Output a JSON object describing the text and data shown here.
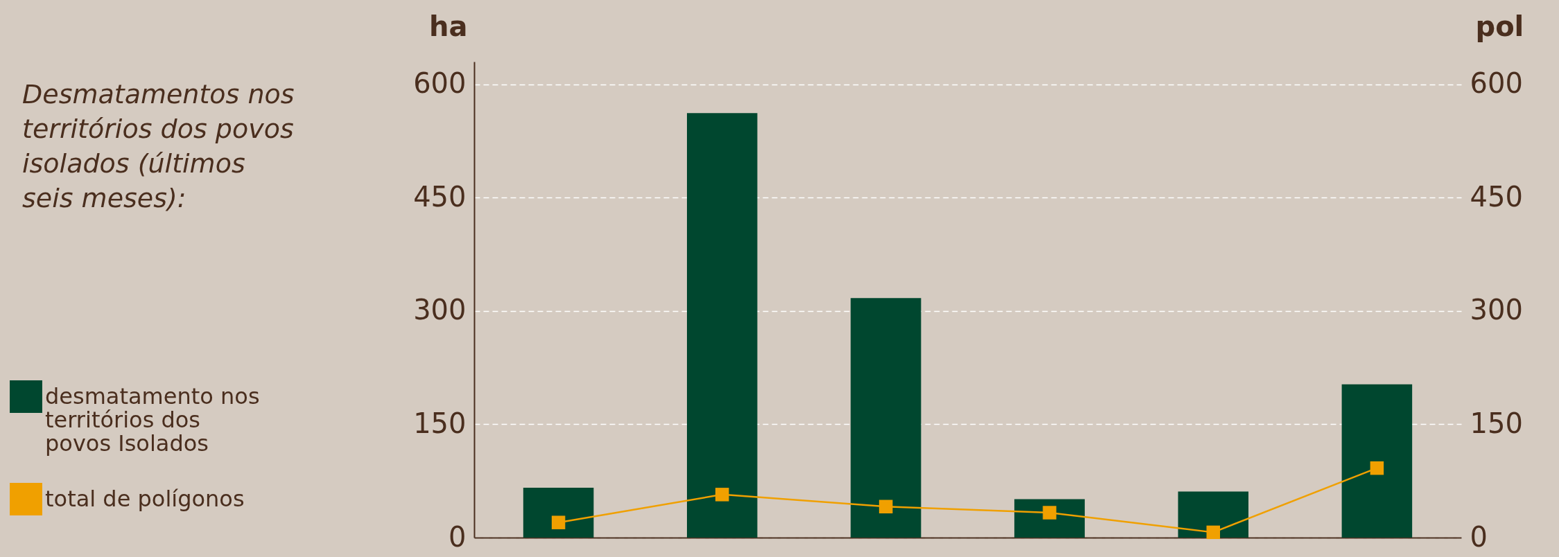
{
  "chart_data": {
    "type": "bar",
    "title": "Desmatamentos nos territórios dos povos isolados (últimos seis meses):",
    "categories": [
      null,
      null,
      null,
      null,
      null,
      null
    ],
    "series": [
      {
        "name": "desmatamento nos territórios dos povos Isolados",
        "color": "#00472f",
        "values": [
          66,
          562,
          317,
          51,
          61,
          203
        ]
      },
      {
        "name": "total de polígonos",
        "type": "line",
        "axis": "y2",
        "color": "#f0a000",
        "values": [
          20,
          57,
          41,
          33,
          7,
          92
        ]
      }
    ],
    "ylabel": "ha",
    "y2label": "pol",
    "ylim": [
      0,
      630
    ],
    "yticks": [
      0,
      150,
      300,
      450,
      600
    ],
    "y2lim": [
      0,
      630
    ],
    "y2ticks": [
      0,
      150,
      300,
      450,
      600
    ],
    "grid": "y",
    "legend": "left",
    "marker": "square",
    "line_style": "solid"
  }
}
